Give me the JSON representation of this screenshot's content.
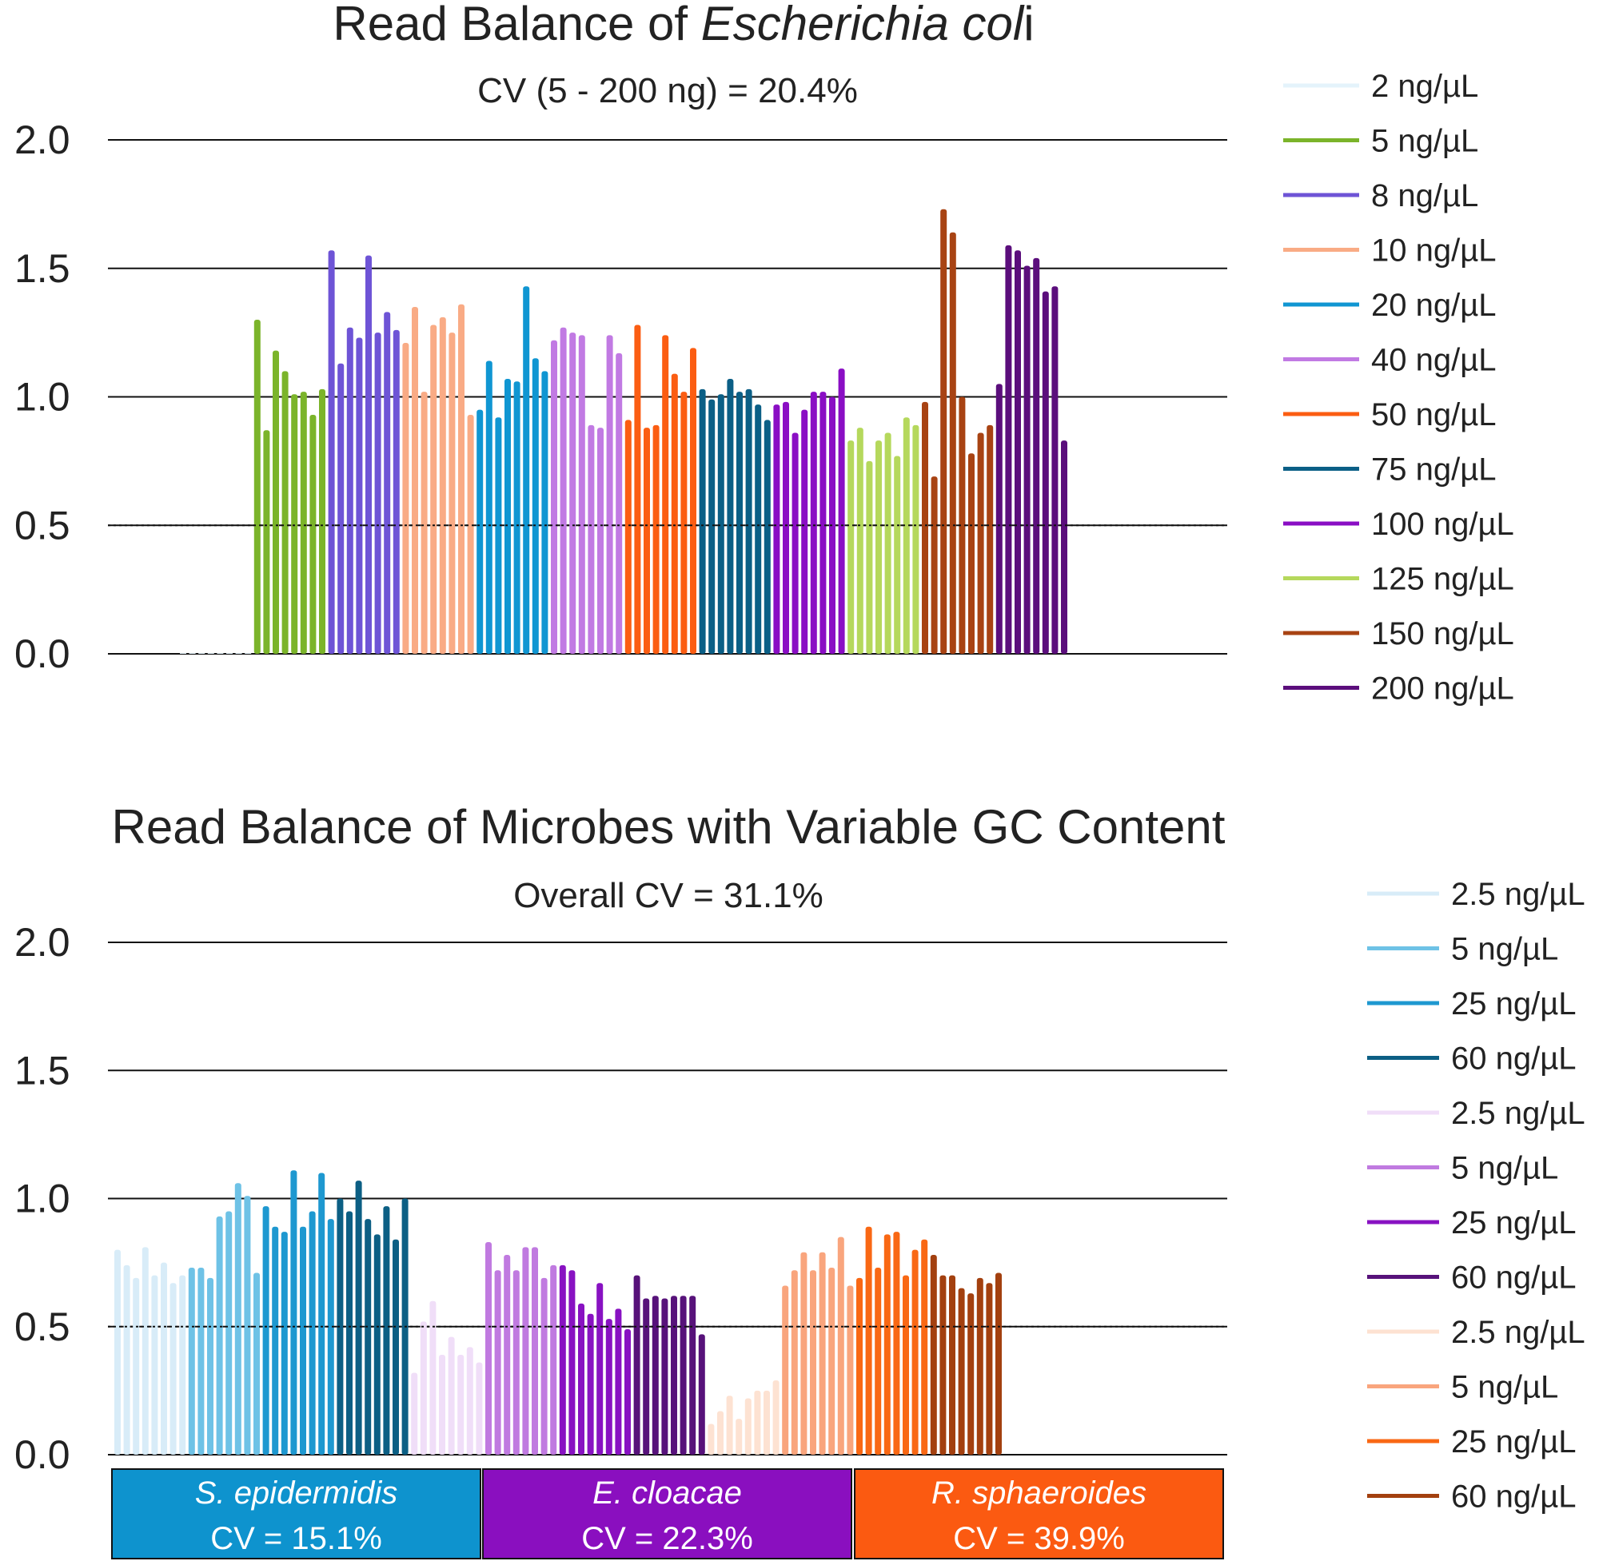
{
  "chart_data": [
    {
      "type": "bar",
      "title": "Read Balance of ",
      "title_italic": "Escherichia col",
      "title_suffix": "i",
      "subtitle": "CV (5 - 200 ng) = 20.4%",
      "xlabel": "",
      "ylabel": "",
      "ylim": [
        0,
        2.0
      ],
      "yticks": [
        "0.0",
        "0.5",
        "1.0",
        "1.5",
        "2.0"
      ],
      "grid": true,
      "legend_position": "right",
      "series": [
        {
          "name": "2 ng/µL",
          "color": "#e4f3fb",
          "values": [
            0.0,
            0.0,
            0.0,
            0.0,
            0.0,
            0.0,
            0.0,
            0.0
          ]
        },
        {
          "name": "5 ng/µL",
          "color": "#7bb42a",
          "values": [
            1.3,
            0.87,
            1.18,
            1.1,
            1.01,
            1.02,
            0.93,
            1.03
          ]
        },
        {
          "name": "8 ng/µL",
          "color": "#6e54d6",
          "values": [
            1.57,
            1.13,
            1.27,
            1.23,
            1.55,
            1.25,
            1.33,
            1.26
          ]
        },
        {
          "name": "10 ng/µL",
          "color": "#f9ab85",
          "values": [
            1.21,
            1.35,
            1.02,
            1.28,
            1.31,
            1.25,
            1.36,
            0.93
          ]
        },
        {
          "name": "20 ng/µL",
          "color": "#1096d2",
          "values": [
            0.95,
            1.14,
            0.92,
            1.07,
            1.06,
            1.43,
            1.15,
            1.1
          ]
        },
        {
          "name": "40 ng/µL",
          "color": "#c17ae3",
          "values": [
            1.22,
            1.27,
            1.25,
            1.24,
            0.89,
            0.88,
            1.24,
            1.17
          ]
        },
        {
          "name": "50 ng/µL",
          "color": "#fb5d12",
          "values": [
            0.91,
            1.28,
            0.88,
            0.89,
            1.24,
            1.09,
            1.02,
            1.19
          ]
        },
        {
          "name": "75 ng/µL",
          "color": "#0b5f86",
          "values": [
            1.03,
            0.99,
            1.01,
            1.07,
            1.02,
            1.03,
            0.97,
            0.91
          ]
        },
        {
          "name": "100 ng/µL",
          "color": "#8a0ec4",
          "values": [
            0.97,
            0.98,
            0.86,
            0.95,
            1.02,
            1.02,
            1.0,
            1.11
          ]
        },
        {
          "name": "125 ng/µL",
          "color": "#b5d85c",
          "values": [
            0.83,
            0.88,
            0.75,
            0.83,
            0.86,
            0.77,
            0.92,
            0.89
          ]
        },
        {
          "name": "150 ng/µL",
          "color": "#a84313",
          "values": [
            0.98,
            0.69,
            1.73,
            1.64,
            1.0,
            0.78,
            0.86,
            0.89
          ]
        },
        {
          "name": "200 ng/µL",
          "color": "#5b0e7c",
          "values": [
            1.05,
            1.59,
            1.57,
            1.51,
            1.54,
            1.41,
            1.43,
            0.83
          ]
        }
      ]
    },
    {
      "type": "bar",
      "title": "Read Balance of Microbes with Variable GC Content",
      "subtitle": "Overall CV = 31.1%",
      "xlabel": "",
      "ylabel": "",
      "ylim": [
        0,
        2.0
      ],
      "yticks": [
        "0.0",
        "0.5",
        "1.0",
        "1.5",
        "2.0"
      ],
      "grid": true,
      "legend_position": "right",
      "groups": [
        {
          "label": "S. epidermidis",
          "cv": "CV = 15.1%",
          "color": "#0e93ce"
        },
        {
          "label": "E. cloacae",
          "cv": "CV = 22.3%",
          "color": "#8a0fbf"
        },
        {
          "label": "R. sphaeroides",
          "cv": "CV = 39.9%",
          "color": "#fb5a11"
        }
      ],
      "series": [
        {
          "name": "2.5 ng/µL",
          "color": "#d8ecf8",
          "values": [
            0.8,
            0.74,
            0.69,
            0.81,
            0.7,
            0.75,
            0.67,
            0.7
          ]
        },
        {
          "name": "5 ng/µL",
          "color": "#6ec2e6",
          "values": [
            0.73,
            0.73,
            0.69,
            0.93,
            0.95,
            1.06,
            1.01,
            0.71
          ]
        },
        {
          "name": "25 ng/µL",
          "color": "#1e98d0",
          "values": [
            0.97,
            0.89,
            0.87,
            1.11,
            0.89,
            0.95,
            1.1,
            0.92
          ]
        },
        {
          "name": "60 ng/µL",
          "color": "#0c5f84",
          "values": [
            1.0,
            0.95,
            1.07,
            0.92,
            0.86,
            0.97,
            0.84,
            1.0
          ]
        },
        {
          "name": "2.5 ng/µL",
          "color": "#f0def8",
          "values": [
            0.32,
            0.52,
            0.6,
            0.39,
            0.46,
            0.39,
            0.42,
            0.36
          ]
        },
        {
          "name": "5 ng/µL",
          "color": "#c07ae0",
          "values": [
            0.83,
            0.72,
            0.78,
            0.72,
            0.81,
            0.81,
            0.69,
            0.74
          ]
        },
        {
          "name": "25 ng/µL",
          "color": "#8812c2",
          "values": [
            0.74,
            0.72,
            0.59,
            0.55,
            0.67,
            0.53,
            0.57,
            0.49
          ]
        },
        {
          "name": "60 ng/µL",
          "color": "#57127a",
          "values": [
            0.7,
            0.61,
            0.62,
            0.61,
            0.62,
            0.62,
            0.62,
            0.47
          ]
        },
        {
          "name": "2.5 ng/µL",
          "color": "#fde2d2",
          "values": [
            0.12,
            0.17,
            0.23,
            0.14,
            0.22,
            0.25,
            0.25,
            0.29
          ]
        },
        {
          "name": "5 ng/µL",
          "color": "#f9a57d",
          "values": [
            0.66,
            0.72,
            0.79,
            0.72,
            0.79,
            0.73,
            0.85,
            0.66
          ]
        },
        {
          "name": "25 ng/µL",
          "color": "#f96814",
          "values": [
            0.69,
            0.89,
            0.73,
            0.86,
            0.87,
            0.7,
            0.8,
            0.84
          ]
        },
        {
          "name": "60 ng/µL",
          "color": "#a3400f",
          "values": [
            0.78,
            0.7,
            0.7,
            0.65,
            0.63,
            0.69,
            0.67,
            0.71
          ]
        }
      ]
    }
  ]
}
